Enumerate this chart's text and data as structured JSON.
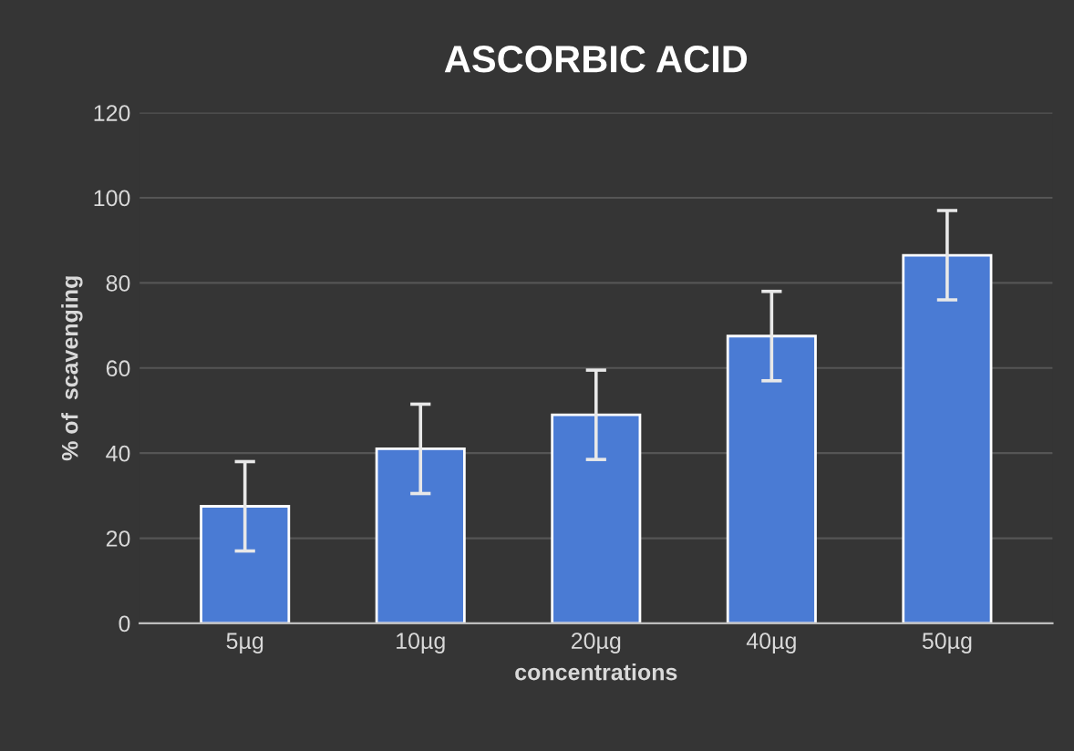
{
  "chart_data": {
    "type": "bar",
    "title": "ASCORBIC ACID",
    "xlabel": "concentrations",
    "ylabel": "% of  scavenging",
    "categories": [
      "5µg",
      "10µg",
      "20µg",
      "40µg",
      "50µg"
    ],
    "values": [
      27.5,
      41,
      49,
      67.5,
      86.5
    ],
    "errors": [
      10.5,
      10.5,
      10.5,
      10.5,
      10.5
    ],
    "color": "#4a7bd4",
    "ylim": [
      0,
      120
    ],
    "yticks": [
      0,
      20,
      40,
      60,
      80,
      100,
      120
    ],
    "grid": "y",
    "legend": false
  }
}
